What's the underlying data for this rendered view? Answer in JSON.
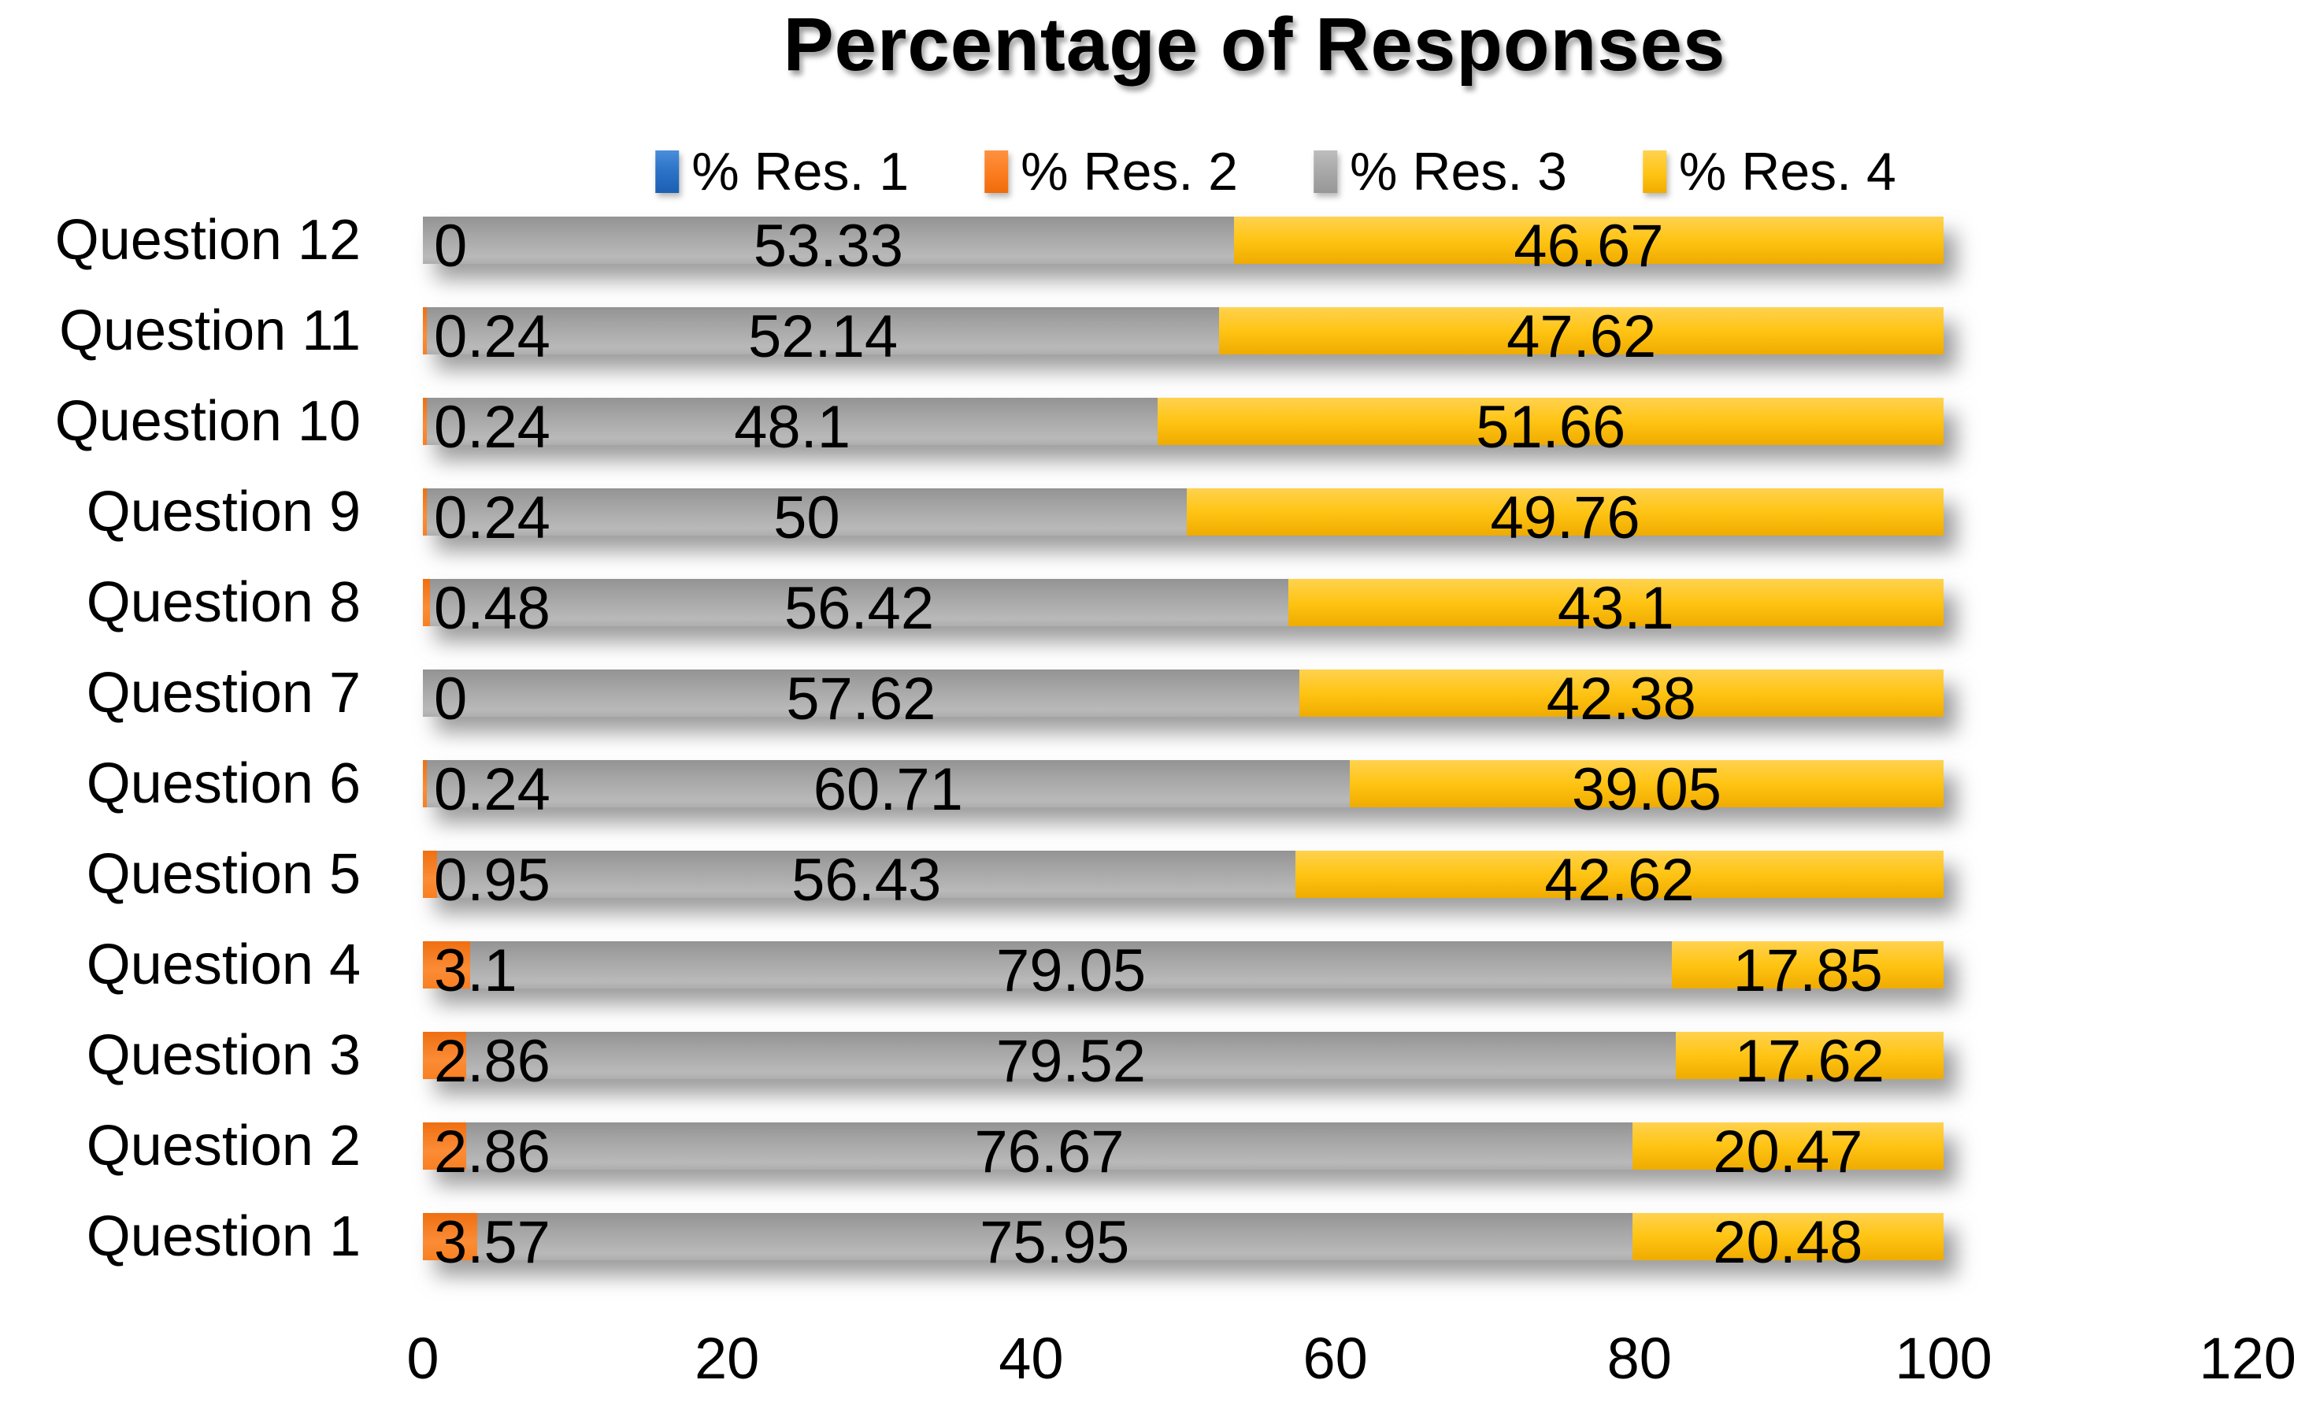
{
  "chart_data": {
    "type": "bar",
    "orientation": "horizontal_stacked",
    "title": "Percentage of Responses",
    "categories": [
      "Question 12",
      "Question 11",
      "Question 10",
      "Question 9",
      "Question 8",
      "Question 7",
      "Question 6",
      "Question 5",
      "Question 4",
      "Question 3",
      "Question 2",
      "Question 1"
    ],
    "series": [
      {
        "name": "% Res. 1",
        "color": "#2E75C6",
        "values": [
          0,
          0,
          0,
          0,
          0,
          0,
          0,
          0,
          0,
          0,
          0,
          0
        ],
        "labels": [
          "",
          "",
          "",
          "",
          "",
          "",
          "",
          "",
          "",
          "",
          "",
          ""
        ]
      },
      {
        "name": "% Res. 2",
        "color": "#FB7C1E",
        "values": [
          0,
          0.24,
          0.24,
          0.24,
          0.48,
          0,
          0.24,
          0.95,
          3.1,
          2.86,
          2.86,
          3.57
        ],
        "labels": [
          "0",
          "0.24",
          "0.24",
          "0.24",
          "0.48",
          "0",
          "0.24",
          "0.95",
          "3.1",
          "2.86",
          "2.86",
          "3.57"
        ]
      },
      {
        "name": "% Res. 3",
        "color": "#A6A6A6",
        "values": [
          53.33,
          52.14,
          48.1,
          50,
          56.42,
          57.62,
          60.71,
          56.43,
          79.05,
          79.52,
          76.67,
          75.95
        ],
        "labels": [
          "53.33",
          "52.14",
          "48.1",
          "50",
          "56.42",
          "57.62",
          "60.71",
          "56.43",
          "79.05",
          "79.52",
          "76.67",
          "75.95"
        ]
      },
      {
        "name": "% Res. 4",
        "color": "#FFC000",
        "values": [
          46.67,
          47.62,
          51.66,
          49.76,
          43.1,
          42.38,
          39.05,
          42.62,
          17.85,
          17.62,
          20.47,
          20.48
        ],
        "labels": [
          "46.67",
          "47.62",
          "51.66",
          "49.76",
          "43.1",
          "42.38",
          "39.05",
          "42.62",
          "17.85",
          "17.62",
          "20.47",
          "20.48"
        ]
      }
    ],
    "x_axis": {
      "min": 0,
      "max": 120,
      "tick_interval": 20,
      "ticks": [
        "0",
        "20",
        "40",
        "60",
        "80",
        "100",
        "120"
      ]
    },
    "legend_position": "top",
    "grid": false
  }
}
